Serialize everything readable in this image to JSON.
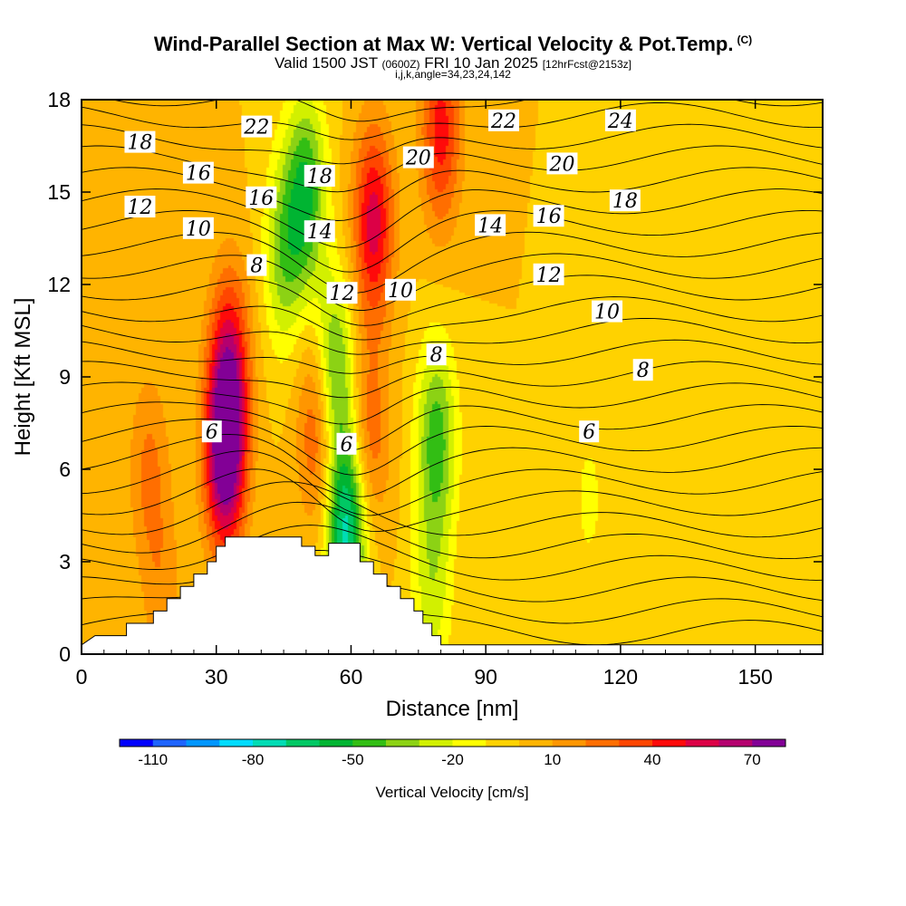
{
  "header": {
    "title": "Wind-Parallel Section at Max W: Vertical Velocity & Pot.Temp.",
    "copyright": "(C)",
    "valid_a": "Valid 1500 JST",
    "valid_zulu": "(0600Z)",
    "valid_b": "FRI 10 Jan 2025",
    "fcst": "[12hrFcst@2153z]",
    "indices": "i,j,k,angle=34,23,24,142"
  },
  "colorbar": {
    "label": "Vertical Velocity [cm/s]",
    "colors": [
      "#0000ff",
      "#1e64ff",
      "#0096ff",
      "#00dcff",
      "#00dcb4",
      "#00c864",
      "#00b432",
      "#32be14",
      "#8cd214",
      "#d2f000",
      "#ffff00",
      "#ffd200",
      "#ffb400",
      "#ff9600",
      "#ff6e00",
      "#ff4600",
      "#ff0a0a",
      "#dc0046",
      "#b4006e",
      "#820096"
    ],
    "tick_labels": [
      "-110",
      "-80",
      "-50",
      "-20",
      "10",
      "40",
      "70"
    ]
  },
  "chart_data": {
    "type": "heatmap",
    "title": "Wind-Parallel Section at Max W: Vertical Velocity & Pot.Temp.",
    "xlabel": "Distance [nm]",
    "ylabel": "Height [Kft MSL]",
    "xlim": [
      0,
      165
    ],
    "ylim": [
      0,
      18
    ],
    "x_ticks": [
      "0",
      "30",
      "60",
      "90",
      "120",
      "150"
    ],
    "y_ticks": [
      "0",
      "3",
      "6",
      "9",
      "12",
      "15",
      "18"
    ],
    "colorbar_range": [
      -120,
      90
    ],
    "colorbar_step": 10,
    "background_value": 0,
    "velocity_features": [
      {
        "x": 32,
        "z": 6.5,
        "w": 85
      },
      {
        "x": 33,
        "z": 9.5,
        "w": 45
      },
      {
        "x": 53,
        "z": 7.5,
        "w": 45
      },
      {
        "x": 65,
        "z": 14,
        "w": 55
      },
      {
        "x": 64,
        "z": 7,
        "w": 30
      },
      {
        "x": 80,
        "z": 17,
        "w": 45
      },
      {
        "x": 59,
        "z": 4,
        "w": -75
      },
      {
        "x": 56,
        "z": 9,
        "w": -55
      },
      {
        "x": 50,
        "z": 15,
        "w": -50
      },
      {
        "x": 79,
        "z": 7,
        "w": -45
      },
      {
        "x": 78,
        "z": 2,
        "w": -25
      },
      {
        "x": 45,
        "z": 13,
        "w": -35
      },
      {
        "x": 113,
        "z": 5,
        "w": -12
      },
      {
        "x": 148,
        "z": 4,
        "w": -10
      },
      {
        "x": 15,
        "z": 6,
        "w": 22
      },
      {
        "x": 18,
        "z": 2,
        "w": 15
      }
    ],
    "theta_contour_labels": [
      {
        "text": "6",
        "x": 29,
        "z": 7.2
      },
      {
        "text": "6",
        "x": 59,
        "z": 6.8
      },
      {
        "text": "6",
        "x": 113,
        "z": 7.2
      },
      {
        "text": "8",
        "x": 39,
        "z": 12.6
      },
      {
        "text": "8",
        "x": 79,
        "z": 9.7
      },
      {
        "text": "8",
        "x": 125,
        "z": 9.2
      },
      {
        "text": "10",
        "x": 26,
        "z": 13.8
      },
      {
        "text": "10",
        "x": 71,
        "z": 11.8
      },
      {
        "text": "10",
        "x": 117,
        "z": 11.1
      },
      {
        "text": "12",
        "x": 13,
        "z": 14.5
      },
      {
        "text": "12",
        "x": 58,
        "z": 11.7
      },
      {
        "text": "12",
        "x": 104,
        "z": 12.3
      },
      {
        "text": "14",
        "x": 53,
        "z": 13.7
      },
      {
        "text": "14",
        "x": 91,
        "z": 13.9
      },
      {
        "text": "16",
        "x": 26,
        "z": 15.6
      },
      {
        "text": "16",
        "x": 40,
        "z": 14.8
      },
      {
        "text": "16",
        "x": 104,
        "z": 14.2
      },
      {
        "text": "18",
        "x": 13,
        "z": 16.6
      },
      {
        "text": "18",
        "x": 53,
        "z": 15.5
      },
      {
        "text": "18",
        "x": 121,
        "z": 14.7
      },
      {
        "text": "20",
        "x": 75,
        "z": 16.1
      },
      {
        "text": "20",
        "x": 107,
        "z": 15.9
      },
      {
        "text": "22",
        "x": 39,
        "z": 17.1
      },
      {
        "text": "22",
        "x": 94,
        "z": 17.3
      },
      {
        "text": "24",
        "x": 120,
        "z": 17.3
      }
    ],
    "terrain": [
      [
        0,
        0.3
      ],
      [
        3,
        0.6
      ],
      [
        10,
        0.6
      ],
      [
        10,
        1.0
      ],
      [
        16,
        1.0
      ],
      [
        16,
        1.4
      ],
      [
        19,
        1.4
      ],
      [
        19,
        1.8
      ],
      [
        22,
        1.8
      ],
      [
        22,
        2.2
      ],
      [
        25,
        2.2
      ],
      [
        25,
        2.6
      ],
      [
        28,
        2.6
      ],
      [
        28,
        3.0
      ],
      [
        30,
        3.0
      ],
      [
        30,
        3.5
      ],
      [
        32,
        3.5
      ],
      [
        32,
        3.8
      ],
      [
        49,
        3.8
      ],
      [
        49,
        3.5
      ],
      [
        52,
        3.5
      ],
      [
        52,
        3.2
      ],
      [
        55,
        3.2
      ],
      [
        55,
        3.6
      ],
      [
        62,
        3.6
      ],
      [
        62,
        3.0
      ],
      [
        65,
        3.0
      ],
      [
        65,
        2.6
      ],
      [
        68,
        2.6
      ],
      [
        68,
        2.2
      ],
      [
        71,
        2.2
      ],
      [
        71,
        1.8
      ],
      [
        74,
        1.8
      ],
      [
        74,
        1.4
      ],
      [
        76,
        1.4
      ],
      [
        76,
        1.0
      ],
      [
        78,
        1.0
      ],
      [
        78,
        0.6
      ],
      [
        80,
        0.6
      ],
      [
        80,
        0.3
      ],
      [
        165,
        0.3
      ]
    ]
  }
}
